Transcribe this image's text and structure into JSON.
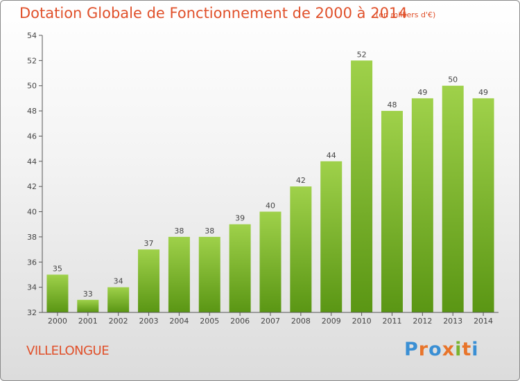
{
  "header": {
    "title": "Dotation Globale de Fonctionnement de 2000 à 2014",
    "subtitle": "(en milliers d'€)"
  },
  "footer": {
    "commune": "VILLELONGUE",
    "brand": "Proxiti",
    "brand_colors": [
      "#3a8fd4",
      "#e8742a",
      "#3a8fd4",
      "#e8742a",
      "#7ab32e",
      "#e8742a",
      "#3a8fd4"
    ]
  },
  "colors": {
    "title": "#e0502a",
    "bar_top": "#9fd14a",
    "bar_bottom": "#5a9614",
    "axis": "#555555",
    "grid": "#d8d8d8"
  },
  "chart_data": {
    "type": "bar",
    "title": "Dotation Globale de Fonctionnement de 2000 à 2014",
    "subtitle": "(en milliers d'€)",
    "xlabel": "",
    "ylabel": "",
    "categories": [
      "2000",
      "2001",
      "2002",
      "2003",
      "2004",
      "2005",
      "2006",
      "2007",
      "2008",
      "2009",
      "2010",
      "2011",
      "2012",
      "2013",
      "2014"
    ],
    "values": [
      35,
      33,
      34,
      37,
      38,
      38,
      39,
      40,
      42,
      44,
      52,
      48,
      49,
      50,
      49
    ],
    "ylim": [
      32,
      54
    ],
    "yticks": [
      32,
      34,
      36,
      38,
      40,
      42,
      44,
      46,
      48,
      50,
      52,
      54
    ],
    "grid": false,
    "data_labels": true
  }
}
